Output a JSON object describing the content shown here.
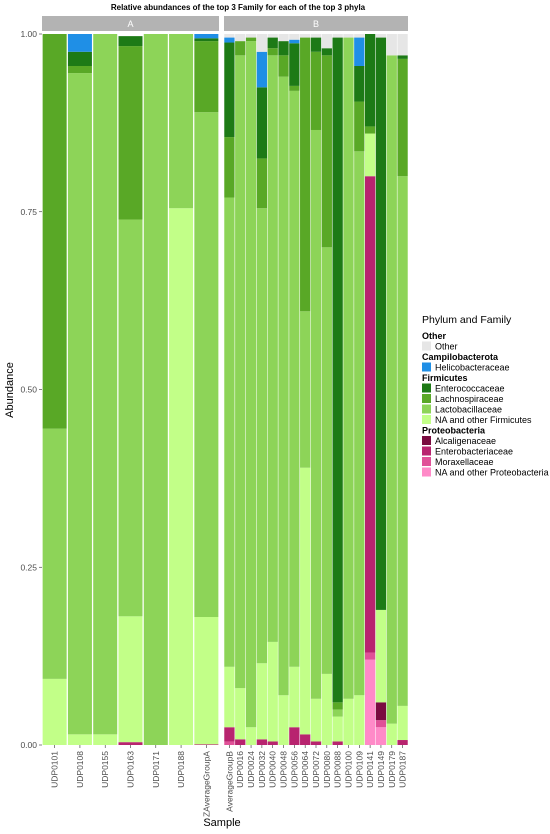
{
  "chart_data": {
    "type": "bar",
    "title": "Relative abundances of the top 3 Family for each of the top 3 phyla",
    "xlabel": "Sample",
    "ylabel": "Abundance",
    "ylim": [
      0,
      1
    ],
    "y_ticks": [
      "0.00",
      "0.25",
      "0.50",
      "0.75",
      "1.00"
    ],
    "stacked": true,
    "legend": {
      "title": "Phylum and Family",
      "position": "right",
      "groups": [
        {
          "phylum": "Other",
          "families": [
            {
              "name": "Other",
              "color": "#e6e6e6"
            }
          ]
        },
        {
          "phylum": "Campilobacterota",
          "families": [
            {
              "name": "Helicobacteraceae",
              "color": "#1f8fe6"
            }
          ]
        },
        {
          "phylum": "Firmicutes",
          "families": [
            {
              "name": "Enterococcaceae",
              "color": "#1d7a16"
            },
            {
              "name": "Lachnospiraceae",
              "color": "#59a826"
            },
            {
              "name": "Lactobacillaceae",
              "color": "#8dd458"
            },
            {
              "name": "NA and other Firmicutes",
              "color": "#c2ff88"
            }
          ]
        },
        {
          "phylum": "Proteobacteria",
          "families": [
            {
              "name": "Alcaligenaceae",
              "color": "#7a0b40"
            },
            {
              "name": "Enterobacteriaceae",
              "color": "#b8246f"
            },
            {
              "name": "Moraxellaceae",
              "color": "#e05198"
            },
            {
              "name": "NA and other Proteobacteria",
              "color": "#ff8ac8"
            }
          ]
        }
      ]
    },
    "stack_order": [
      "Other",
      "Helicobacteraceae",
      "Enterococcaceae",
      "Lachnospiraceae",
      "Lactobacillaceae",
      "NA and other Firmicutes",
      "Alcaligenaceae",
      "Enterobacteriaceae",
      "Moraxellaceae",
      "NA and other Proteobacteria"
    ],
    "panels": [
      {
        "label": "A",
        "samples": [
          {
            "name": "UDP0101",
            "values": {
              "Other": 0,
              "Helicobacteraceae": 0,
              "Enterococcaceae": 0,
              "Lachnospiraceae": 0.555,
              "Lactobacillaceae": 0.352,
              "NA and other Firmicutes": 0.093
            }
          },
          {
            "name": "UDP0108",
            "values": {
              "Other": 0,
              "Helicobacteraceae": 0.025,
              "Enterococcaceae": 0.02,
              "Lachnospiraceae": 0.01,
              "Lactobacillaceae": 0.93,
              "NA and other Firmicutes": 0.015
            }
          },
          {
            "name": "UDP0155",
            "values": {
              "Other": 0,
              "Helicobacteraceae": 0,
              "Enterococcaceae": 0,
              "Lachnospiraceae": 0,
              "Lactobacillaceae": 0.985,
              "NA and other Firmicutes": 0.015
            }
          },
          {
            "name": "UDP0163",
            "values": {
              "Other": 0,
              "Helicobacteraceae": 0,
              "Enterococcaceae": 0.014,
              "Lachnospiraceae": 0.244,
              "Lactobacillaceae": 0.558,
              "NA and other Firmicutes": 0.177,
              "Enterobacteriaceae": 0.004
            }
          },
          {
            "name": "UDP0171",
            "values": {
              "Other": 0,
              "Helicobacteraceae": 0,
              "Enterococcaceae": 0,
              "Lachnospiraceae": 0,
              "Lactobacillaceae": 1.0,
              "NA and other Firmicutes": 0
            }
          },
          {
            "name": "UDP0188",
            "values": {
              "Other": 0,
              "Helicobacteraceae": 0,
              "Enterococcaceae": 0,
              "Lachnospiraceae": 0,
              "Lactobacillaceae": 0.245,
              "NA and other Firmicutes": 0.755
            }
          },
          {
            "name": "ZAverageGroupA",
            "values": {
              "Other": 0,
              "Helicobacteraceae": 0.006,
              "Enterococcaceae": 0.004,
              "Lachnospiraceae": 0.1,
              "Lactobacillaceae": 0.71,
              "NA and other Firmicutes": 0.179,
              "Enterobacteriaceae": 0.001
            }
          }
        ]
      },
      {
        "label": "B",
        "samples": [
          {
            "name": "AverageGroupB",
            "values": {
              "Other": 0.005,
              "Helicobacteraceae": 0.007,
              "Enterococcaceae": 0.133,
              "Lachnospiraceae": 0.085,
              "Lactobacillaceae": 0.66,
              "NA and other Firmicutes": 0.085,
              "Enterobacteriaceae": 0.02,
              "Moraxellaceae": 0.005
            }
          },
          {
            "name": "UDP0016",
            "values": {
              "Other": 0.01,
              "Helicobacteraceae": 0,
              "Enterococcaceae": 0,
              "Lachnospiraceae": 0.02,
              "Lactobacillaceae": 0.89,
              "NA and other Firmicutes": 0.072,
              "Enterobacteriaceae": 0.008
            }
          },
          {
            "name": "UDP0024",
            "values": {
              "Other": 0.005,
              "Helicobacteraceae": 0,
              "Enterococcaceae": 0,
              "Lachnospiraceae": 0.005,
              "Lactobacillaceae": 0.965,
              "NA and other Firmicutes": 0.025
            }
          },
          {
            "name": "UDP0032",
            "values": {
              "Other": 0.025,
              "Helicobacteraceae": 0.05,
              "Enterococcaceae": 0.1,
              "Lachnospiraceae": 0.07,
              "Lactobacillaceae": 0.64,
              "NA and other Firmicutes": 0.107,
              "Enterobacteriaceae": 0.008
            }
          },
          {
            "name": "UDP0040",
            "values": {
              "Other": 0.005,
              "Helicobacteraceae": 0,
              "Enterococcaceae": 0.015,
              "Lachnospiraceae": 0.01,
              "Lactobacillaceae": 0.825,
              "NA and other Firmicutes": 0.14,
              "Enterobacteriaceae": 0.005
            }
          },
          {
            "name": "UDP0048",
            "values": {
              "Other": 0.01,
              "Helicobacteraceae": 0,
              "Enterococcaceae": 0.02,
              "Lachnospiraceae": 0.03,
              "Lactobacillaceae": 0.87,
              "NA and other Firmicutes": 0.07
            }
          },
          {
            "name": "UDP0056",
            "values": {
              "Other": 0.008,
              "Helicobacteraceae": 0.005,
              "Enterococcaceae": 0.06,
              "Lachnospiraceae": 0.007,
              "Lactobacillaceae": 0.81,
              "NA and other Firmicutes": 0.085,
              "Enterobacteriaceae": 0.025
            }
          },
          {
            "name": "UDP0064",
            "values": {
              "Other": 0.005,
              "Helicobacteraceae": 0,
              "Enterococcaceae": 0,
              "Lachnospiraceae": 0.385,
              "Lactobacillaceae": 0.22,
              "NA and other Firmicutes": 0.375,
              "Enterobacteriaceae": 0.015
            }
          },
          {
            "name": "UDP0072",
            "values": {
              "Other": 0.005,
              "Helicobacteraceae": 0,
              "Enterococcaceae": 0.02,
              "Lachnospiraceae": 0.11,
              "Lactobacillaceae": 0.8,
              "NA and other Firmicutes": 0.06,
              "Enterobacteriaceae": 0.005
            }
          },
          {
            "name": "UDP0080",
            "values": {
              "Other": 0.02,
              "Helicobacteraceae": 0,
              "Enterococcaceae": 0.01,
              "Lachnospiraceae": 0.27,
              "Lactobacillaceae": 0.6,
              "NA and other Firmicutes": 0.1
            }
          },
          {
            "name": "UDP0088",
            "values": {
              "Other": 0.005,
              "Helicobacteraceae": 0,
              "Enterococcaceae": 0.935,
              "Lachnospiraceae": 0.01,
              "Lactobacillaceae": 0.01,
              "NA and other Firmicutes": 0.035,
              "Enterobacteriaceae": 0.005
            }
          },
          {
            "name": "UDP0100",
            "values": {
              "Other": 0.005,
              "Helicobacteraceae": 0,
              "Enterococcaceae": 0,
              "Lachnospiraceae": 0,
              "Lactobacillaceae": 0.93,
              "NA and other Firmicutes": 0.065
            }
          },
          {
            "name": "UDP0109",
            "values": {
              "Other": 0.005,
              "Helicobacteraceae": 0.04,
              "Enterococcaceae": 0.05,
              "Lachnospiraceae": 0.07,
              "Lactobacillaceae": 0.765,
              "NA and other Firmicutes": 0.07
            }
          },
          {
            "name": "UDP0141",
            "values": {
              "Other": 0,
              "Helicobacteraceae": 0,
              "Enterococcaceae": 0.13,
              "Lachnospiraceae": 0.01,
              "Lactobacillaceae": 0,
              "NA and other Firmicutes": 0.06,
              "Alcaligenaceae": 0,
              "Enterobacteriaceae": 0.67,
              "Moraxellaceae": 0.01,
              "NA and other Proteobacteria": 0.12
            }
          },
          {
            "name": "UDP0149",
            "values": {
              "Other": 0.005,
              "Helicobacteraceae": 0,
              "Enterococcaceae": 0.805,
              "Lachnospiraceae": 0,
              "Lactobacillaceae": 0,
              "NA and other Firmicutes": 0.13,
              "Alcaligenaceae": 0.025,
              "Enterobacteriaceae": 0,
              "Moraxellaceae": 0.01,
              "NA and other Proteobacteria": 0.025
            }
          },
          {
            "name": "UDP0179",
            "values": {
              "Other": 0.03,
              "Helicobacteraceae": 0,
              "Enterococcaceae": 0,
              "Lachnospiraceae": 0,
              "Lactobacillaceae": 0.94,
              "NA and other Firmicutes": 0.03
            }
          },
          {
            "name": "UDP0187",
            "values": {
              "Other": 0.03,
              "Helicobacteraceae": 0,
              "Enterococcaceae": 0.005,
              "Lachnospiraceae": 0.165,
              "Lactobacillaceae": 0.745,
              "NA and other Firmicutes": 0.048,
              "Enterobacteriaceae": 0.007
            }
          }
        ]
      }
    ]
  }
}
